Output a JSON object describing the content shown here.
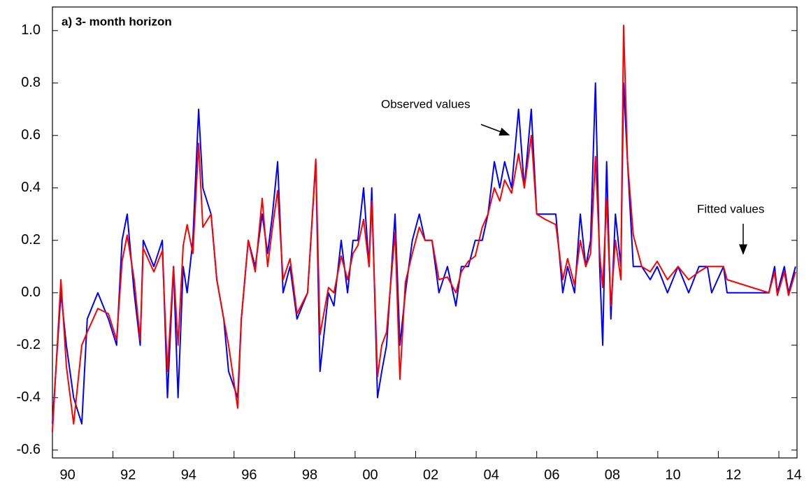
{
  "chart_data": {
    "type": "line",
    "title": "a) 3- month horizon",
    "annotations": [
      "Observed values",
      "Fitted values"
    ],
    "x": [
      1990.0,
      1990.28,
      1990.46,
      1990.7,
      1990.97,
      1991.15,
      1991.5,
      1991.85,
      1992.12,
      1992.3,
      1992.47,
      1992.7,
      1992.9,
      1993.0,
      1993.35,
      1993.63,
      1993.8,
      1994.0,
      1994.15,
      1994.32,
      1994.45,
      1994.64,
      1994.83,
      1994.97,
      1995.24,
      1995.43,
      1995.66,
      1995.82,
      1996.12,
      1996.24,
      1996.47,
      1996.7,
      1996.93,
      1997.11,
      1997.27,
      1997.44,
      1997.62,
      1997.85,
      1998.08,
      1998.43,
      1998.7,
      1998.84,
      1999.12,
      1999.3,
      1999.54,
      1999.75,
      1999.93,
      2000.09,
      2000.28,
      2000.46,
      2000.55,
      2000.74,
      2000.88,
      2001.04,
      2001.32,
      2001.48,
      2001.66,
      2001.89,
      2002.12,
      2002.31,
      2002.54,
      2002.77,
      2003.05,
      2003.33,
      2003.51,
      2003.74,
      2003.97,
      2004.2,
      2004.39,
      2004.6,
      2004.78,
      2004.94,
      2005.17,
      2005.4,
      2005.59,
      2005.82,
      2006.0,
      2006.28,
      2006.63,
      2006.86,
      2007.02,
      2007.25,
      2007.44,
      2007.62,
      2007.78,
      2007.94,
      2008.08,
      2008.18,
      2008.31,
      2008.45,
      2008.6,
      2008.78,
      2008.87,
      2009.0,
      2009.19,
      2009.47,
      2009.75,
      2009.98,
      2010.32,
      2010.67,
      2011.02,
      2011.36,
      2011.64,
      2011.78,
      2012.17,
      2012.29,
      2013.67,
      2013.86,
      2013.95,
      2014.18,
      2014.32,
      2014.55
    ],
    "series": [
      {
        "color": "#0000ff",
        "values": [
          -0.5,
          0.0,
          -0.2,
          -0.4,
          -0.5,
          -0.1,
          0.0,
          -0.1,
          -0.2,
          0.2,
          0.3,
          0.0,
          -0.2,
          0.2,
          0.1,
          0.2,
          -0.4,
          0.1,
          -0.4,
          0.1,
          0.0,
          0.2,
          0.7,
          0.4,
          0.3,
          0.05,
          -0.1,
          -0.3,
          -0.4,
          -0.1,
          0.2,
          0.1,
          0.3,
          0.15,
          0.3,
          0.5,
          0.0,
          0.1,
          -0.1,
          0.0,
          0.5,
          -0.3,
          0.0,
          -0.05,
          0.2,
          0.0,
          0.2,
          0.2,
          0.4,
          0.1,
          0.4,
          -0.4,
          -0.3,
          -0.2,
          0.3,
          -0.2,
          0.0,
          0.2,
          0.3,
          0.2,
          0.2,
          0.0,
          0.1,
          -0.05,
          0.1,
          0.1,
          0.2,
          0.2,
          0.3,
          0.5,
          0.4,
          0.5,
          0.4,
          0.7,
          0.4,
          0.7,
          0.3,
          0.3,
          0.3,
          0.0,
          0.1,
          0.0,
          0.3,
          0.1,
          0.2,
          0.8,
          0.1,
          -0.2,
          0.5,
          -0.1,
          0.3,
          0.1,
          0.8,
          0.5,
          0.1,
          0.1,
          0.05,
          0.1,
          0.0,
          0.1,
          0.0,
          0.1,
          0.1,
          0.0,
          0.1,
          0.0,
          0.0,
          0.1,
          0.0,
          0.1,
          0.0,
          0.1
        ]
      },
      {
        "color": "#ff0000",
        "values": [
          -0.53,
          0.05,
          -0.28,
          -0.5,
          -0.2,
          -0.15,
          -0.06,
          -0.08,
          -0.18,
          0.12,
          0.22,
          0.05,
          -0.18,
          0.17,
          0.08,
          0.16,
          -0.3,
          0.1,
          -0.2,
          0.18,
          0.26,
          0.15,
          0.57,
          0.25,
          0.3,
          0.05,
          -0.1,
          -0.2,
          -0.44,
          -0.1,
          0.2,
          0.08,
          0.36,
          0.1,
          0.25,
          0.39,
          0.05,
          0.13,
          -0.08,
          0.0,
          0.51,
          -0.16,
          0.02,
          0.0,
          0.14,
          0.05,
          0.15,
          0.18,
          0.28,
          0.1,
          0.35,
          -0.32,
          -0.2,
          -0.15,
          0.23,
          -0.33,
          0.04,
          0.15,
          0.25,
          0.2,
          0.2,
          0.05,
          0.06,
          0.0,
          0.08,
          0.12,
          0.14,
          0.25,
          0.3,
          0.4,
          0.35,
          0.43,
          0.38,
          0.53,
          0.4,
          0.6,
          0.3,
          0.28,
          0.26,
          0.05,
          0.13,
          0.03,
          0.2,
          0.1,
          0.15,
          0.52,
          0.15,
          0.02,
          0.36,
          -0.05,
          0.2,
          0.05,
          1.02,
          0.5,
          0.22,
          0.1,
          0.08,
          0.12,
          0.05,
          0.1,
          0.05,
          0.08,
          0.1,
          0.1,
          0.1,
          0.05,
          0.0,
          0.08,
          -0.01,
          0.08,
          -0.01,
          0.08
        ]
      }
    ],
    "xlim": [
      1990,
      2014.6
    ],
    "xticks": [
      {
        "value": 1990,
        "label": "90"
      },
      {
        "value": 1992,
        "label": "92"
      },
      {
        "value": 1994,
        "label": "94"
      },
      {
        "value": 1996,
        "label": "96"
      },
      {
        "value": 1998,
        "label": "98"
      },
      {
        "value": 2000,
        "label": "00"
      },
      {
        "value": 2002,
        "label": "02"
      },
      {
        "value": 2004,
        "label": "04"
      },
      {
        "value": 2006,
        "label": "06"
      },
      {
        "value": 2008,
        "label": "08"
      },
      {
        "value": 2010,
        "label": "10"
      },
      {
        "value": 2012,
        "label": "12"
      },
      {
        "value": 2014,
        "label": "14"
      }
    ],
    "ylim": [
      -0.63,
      1.09
    ],
    "yticks": [
      -0.6,
      -0.4,
      -0.2,
      {
        "value": 0,
        "label": "0.0"
      },
      0.2,
      0.4,
      0.6,
      0.8,
      {
        "value": 1,
        "label": "1.0"
      }
    ],
    "grid": false
  }
}
